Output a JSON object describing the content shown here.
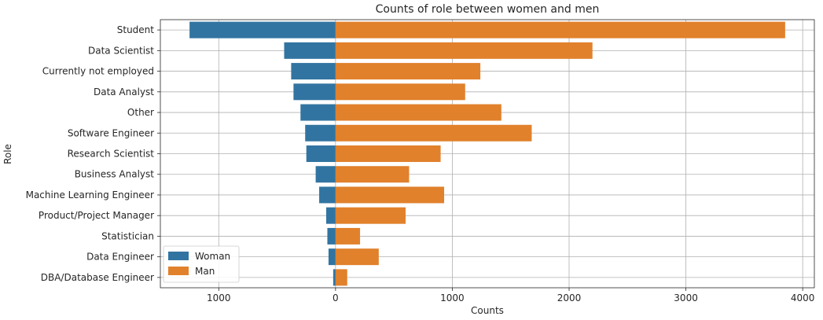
{
  "chart_data": {
    "type": "bar",
    "orientation": "horizontal",
    "title": "Counts of role between women and men",
    "xlabel": "Counts",
    "ylabel": "Role",
    "xlim": [
      -1500,
      4100
    ],
    "x_ticks": [
      -1000,
      0,
      1000,
      2000,
      3000,
      4000
    ],
    "x_tick_labels": [
      "1000",
      "0",
      "1000",
      "2000",
      "3000",
      "4000"
    ],
    "grid": true,
    "legend_position": "lower-left",
    "categories": [
      "Student",
      "Data Scientist",
      "Currently not employed",
      "Data Analyst",
      "Other",
      "Software Engineer",
      "Research Scientist",
      "Business Analyst",
      "Machine Learning Engineer",
      "Product/Project Manager",
      "Statistician",
      "Data Engineer",
      "DBA/Database Engineer"
    ],
    "series": [
      {
        "name": "Woman",
        "color": "#3274a1",
        "values": [
          -1250,
          -440,
          -380,
          -360,
          -300,
          -260,
          -250,
          -170,
          -140,
          -80,
          -70,
          -60,
          -20
        ]
      },
      {
        "name": "Man",
        "color": "#e1812c",
        "values": [
          3850,
          2200,
          1240,
          1110,
          1420,
          1680,
          900,
          630,
          930,
          600,
          210,
          370,
          100
        ]
      }
    ]
  }
}
